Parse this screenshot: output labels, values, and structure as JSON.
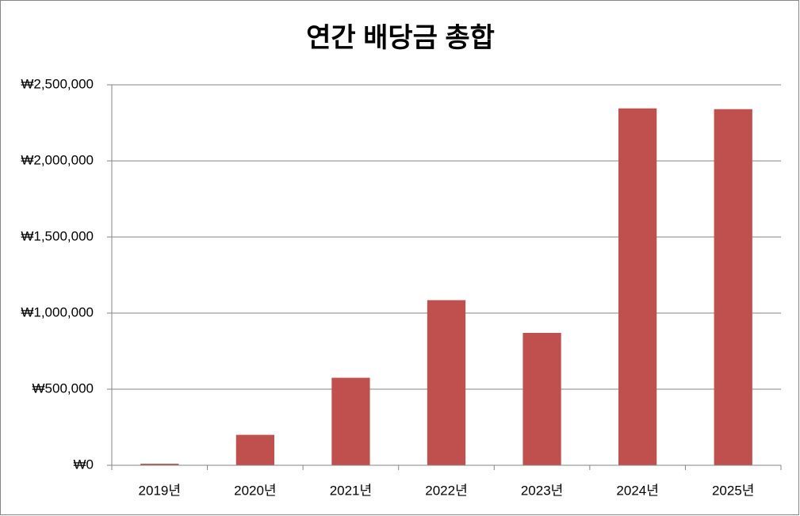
{
  "chart_data": {
    "type": "bar",
    "title": "연간 배당금 총합",
    "categories": [
      "2019년",
      "2020년",
      "2021년",
      "2022년",
      "2023년",
      "2024년",
      "2025년"
    ],
    "values": [
      10000,
      200000,
      575000,
      1085000,
      870000,
      2345000,
      2340000
    ],
    "color": "#c0504d",
    "ylim": [
      0,
      2500000
    ],
    "yticks": [
      {
        "value": 0,
        "label": "₩0"
      },
      {
        "value": 500000,
        "label": "₩500,000"
      },
      {
        "value": 1000000,
        "label": "₩1,000,000"
      },
      {
        "value": 1500000,
        "label": "₩1,500,000"
      },
      {
        "value": 2000000,
        "label": "₩2,000,000"
      },
      {
        "value": 2500000,
        "label": "₩2,500,000"
      }
    ],
    "grid": true
  }
}
